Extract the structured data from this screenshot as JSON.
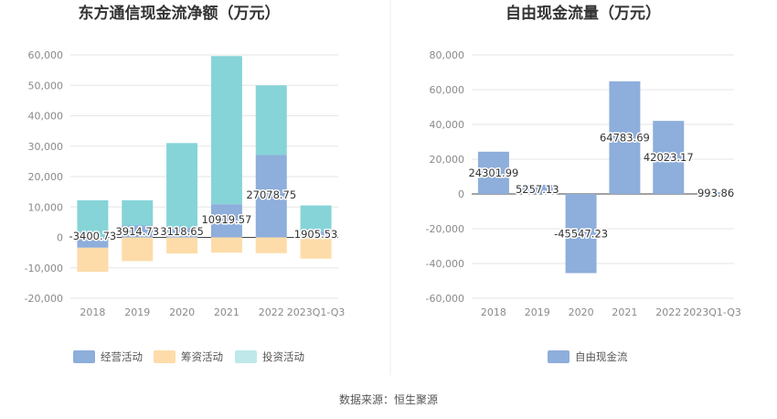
{
  "source_note": "数据来源：恒生聚源",
  "colors": {
    "operating": "#8eaedb",
    "financing": "#fddcaa",
    "investing": "#86d4d8",
    "free_cash_flow": "#8eaedb",
    "legend_investing": "#bfe8ea"
  },
  "chart_data": [
    {
      "type": "bar",
      "stacked": true,
      "title": "东方通信现金流净额（万元）",
      "categories": [
        "2018",
        "2019",
        "2020",
        "2021",
        "2022",
        "2023Q1-Q3"
      ],
      "series": [
        {
          "name": "经营活动",
          "values": [
            -3400.73,
            3914.73,
            3118.65,
            10919.57,
            27078.75,
            1905.53
          ]
        },
        {
          "name": "筹资活动",
          "values": [
            -7900,
            -7800,
            -5300,
            -5000,
            -5200,
            -7000
          ]
        },
        {
          "name": "投资活动",
          "values": [
            12200,
            8300,
            27900,
            48700,
            22900,
            8600
          ]
        }
      ],
      "data_labels": [
        "-3400.73",
        "3914.73",
        "3118.65",
        "10919.57",
        "27078.75",
        "1905.53"
      ],
      "ylim": [
        -20000,
        60000
      ],
      "yticks": [
        -20000,
        -10000,
        0,
        10000,
        20000,
        30000,
        40000,
        50000,
        60000
      ],
      "ytick_labels": [
        "-20,000",
        "-10,000",
        "0",
        "10,000",
        "20,000",
        "30,000",
        "40,000",
        "50,000",
        "60,000"
      ],
      "grid": true,
      "legend_position": "bottom"
    },
    {
      "type": "bar",
      "title": "自由现金流量（万元）",
      "categories": [
        "2018",
        "2019",
        "2020",
        "2021",
        "2022",
        "2023Q1-Q3"
      ],
      "series": [
        {
          "name": "自由现金流",
          "values": [
            24301.99,
            5257.13,
            -45547.23,
            64783.69,
            42023.17,
            993.86
          ]
        }
      ],
      "data_labels": [
        "24301.99",
        "5257.13",
        "-45547.23",
        "64783.69",
        "42023.17",
        "993.86"
      ],
      "ylim": [
        -60000,
        80000
      ],
      "yticks": [
        -60000,
        -40000,
        -20000,
        0,
        20000,
        40000,
        60000,
        80000
      ],
      "ytick_labels": [
        "-60,000",
        "-40,000",
        "-20,000",
        "0",
        "20,000",
        "40,000",
        "60,000",
        "80,000"
      ],
      "grid": true,
      "legend_position": "bottom"
    }
  ]
}
